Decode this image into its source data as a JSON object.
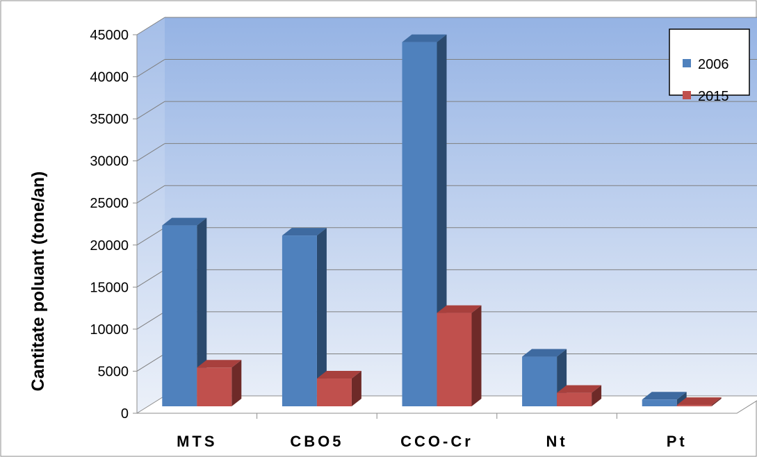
{
  "colors": {
    "series_2006": "#4F81BD",
    "series_2006_side": "#2B4A6E",
    "series_2006_top": "#3E6AA0",
    "series_2015": "#C0504D",
    "series_2015_side": "#6E2A28",
    "series_2015_top": "#A8403D",
    "wall_top": "#95B3E4",
    "wall_bottom": "#E8EEF8"
  },
  "chart_data": {
    "type": "bar",
    "style": "3d-clustered-column",
    "categories": [
      "MTS",
      "CBO5",
      "CCO-Cr",
      "Nt",
      "Pt"
    ],
    "series": [
      {
        "name": "2006",
        "values": [
          21500,
          20300,
          43300,
          5900,
          800
        ]
      },
      {
        "name": "2015",
        "values": [
          4600,
          3300,
          11100,
          1600,
          150
        ]
      }
    ],
    "xlabel": "",
    "ylabel": "Cantitate poluant (tone/an)",
    "ylim": [
      0,
      45000
    ],
    "yticks": [
      0,
      5000,
      10000,
      15000,
      20000,
      25000,
      30000,
      35000,
      40000,
      45000
    ],
    "grid": true,
    "legend": "top-right"
  }
}
